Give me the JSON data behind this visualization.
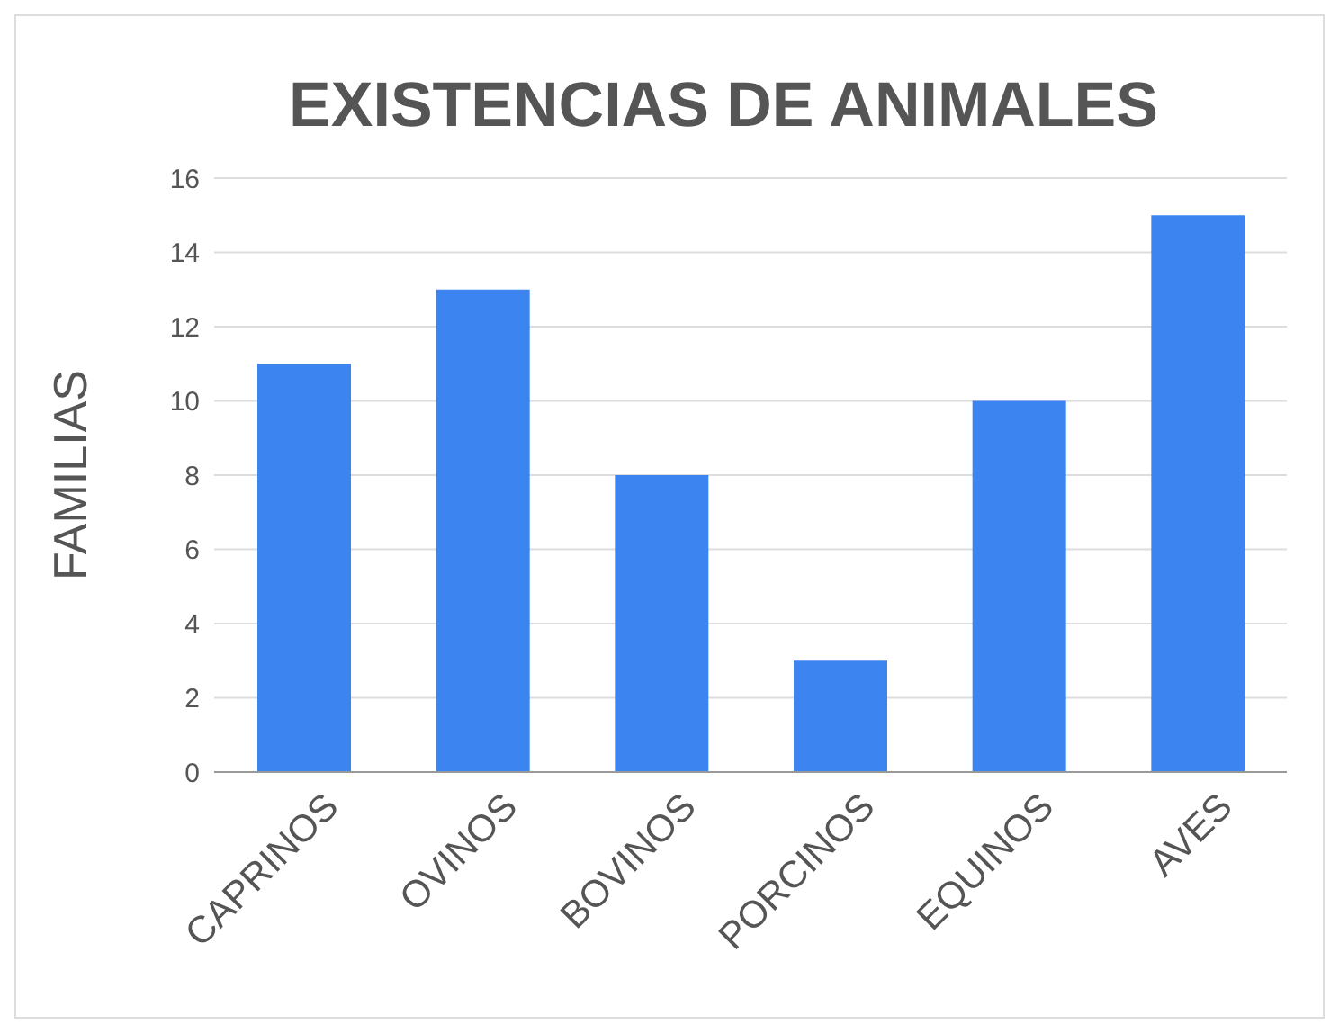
{
  "chart_data": {
    "type": "bar",
    "title": "EXISTENCIAS DE ANIMALES",
    "ylabel": "FAMILIAS",
    "categories": [
      "CAPRINOS",
      "OVINOS",
      "BOVINOS",
      "PORCINOS",
      "EQUINOS",
      "AVES"
    ],
    "values": [
      11,
      13,
      8,
      3,
      10,
      15
    ],
    "color": "#3c84f0",
    "ylim": [
      0,
      16
    ],
    "yticks": [
      0,
      2,
      4,
      6,
      8,
      10,
      12,
      14,
      16
    ],
    "grid": "y"
  }
}
